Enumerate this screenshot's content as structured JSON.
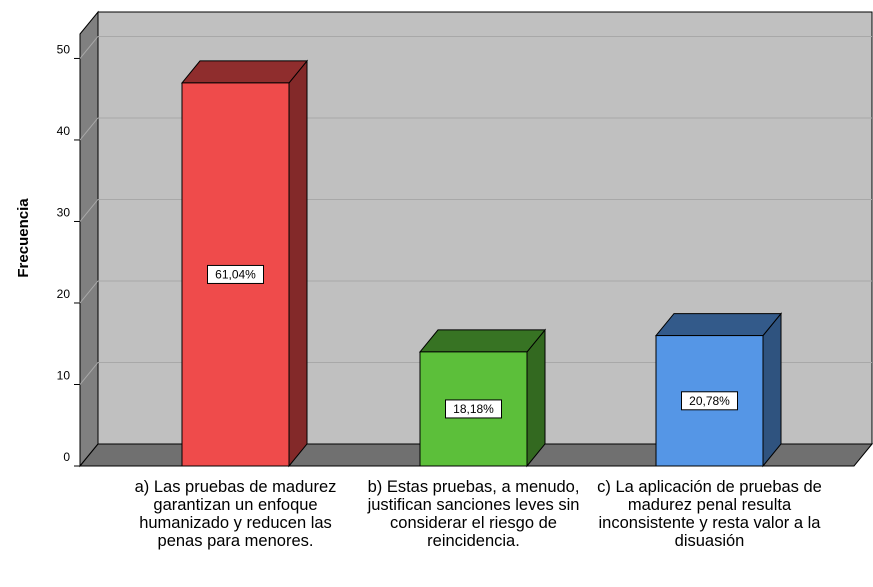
{
  "chart_data": {
    "type": "bar3d",
    "y_label": "Frecuencia",
    "categories": [
      "a) Las pruebas de madurez garantizan un enfoque humanizado y reducen las penas para menores.",
      "b) Estas pruebas, a menudo, justifican sanciones leves sin considerar el riesgo de reincidencia.",
      "c) La aplicación de pruebas de madurez penal resulta inconsistente y resta valor a la disuasión"
    ],
    "values": [
      47,
      14,
      16
    ],
    "value_labels": [
      "61,04%",
      "18,18%",
      "20,78%"
    ],
    "colors": [
      "#ef4b4b",
      "#5cbf3a",
      "#5596e6"
    ],
    "ylim": [
      0,
      53
    ],
    "yticks": [
      0,
      10,
      20,
      30,
      40,
      50
    ],
    "grid": true
  }
}
